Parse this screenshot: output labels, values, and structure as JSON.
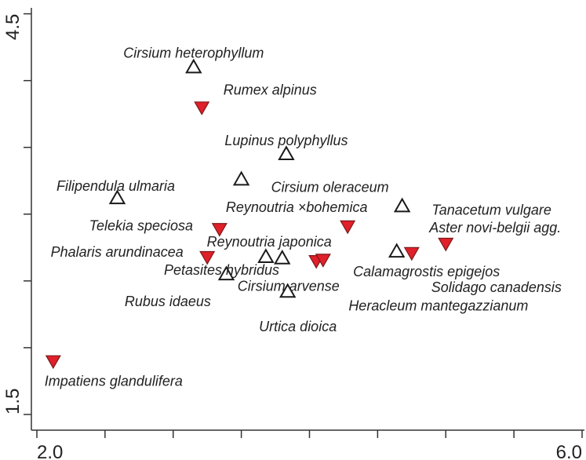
{
  "chart_data": {
    "type": "scatter",
    "xlim": [
      2.0,
      6.0
    ],
    "ylim": [
      1.5,
      4.5
    ],
    "xticks": [
      {
        "value": 2.0,
        "label": "2.0"
      },
      {
        "value": 6.0,
        "label": "6.0"
      }
    ],
    "yticks": [
      {
        "value": 1.5,
        "label": "1.5"
      },
      {
        "value": 4.5,
        "label": "4.5"
      }
    ],
    "xminor_ticks": [
      2.5,
      3.0,
      3.5,
      4.0,
      4.5,
      5.0,
      5.5
    ],
    "yminor_ticks": [
      2.0,
      2.5,
      3.0,
      3.5,
      4.0
    ],
    "series": [
      {
        "marker": "triangle-up-open",
        "color": "#1a1a1a",
        "labels": [
          "Cirsium heterophyllum",
          "Lupinus polyphyllus",
          "Cirsium oleraceum",
          "Filipendula ulmaria",
          "Tanacetum vulgare",
          "Calamagrostis epigejos",
          "Petasites hybridus",
          "Urtica dioica",
          "Rubus idaeus",
          "Cirsium arvense"
        ],
        "x": [
          3.15,
          3.83,
          3.5,
          2.59,
          4.68,
          4.64,
          3.39,
          3.84,
          3.68,
          3.8
        ],
        "values": [
          4.1,
          3.45,
          3.26,
          3.12,
          3.06,
          2.72,
          2.55,
          2.42,
          2.68,
          2.67
        ]
      },
      {
        "marker": "triangle-down-filled",
        "color": "#e0202a",
        "labels": [
          "Rumex alpinus",
          "Telekia speciosa",
          "Phalaris arundinacea",
          "Reynoutria japonica",
          "Heracleum mantegazzianum",
          "Reynoutria ×bohemica",
          "Solidago canadensis",
          "Aster novi-belgii agg.",
          "Impatiens glandulifera"
        ],
        "x": [
          3.21,
          3.34,
          3.25,
          4.05,
          4.1,
          4.28,
          4.75,
          5.0,
          2.12
        ],
        "values": [
          3.8,
          2.89,
          2.68,
          2.65,
          2.66,
          2.91,
          2.71,
          2.78,
          1.9
        ]
      }
    ]
  }
}
